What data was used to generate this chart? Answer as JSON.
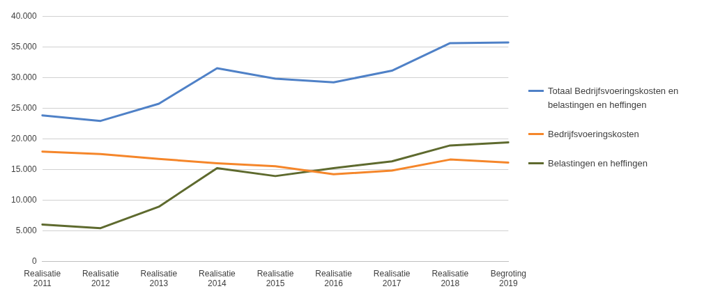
{
  "chart_data": {
    "type": "line",
    "categories": [
      "Realisatie 2011",
      "Realisatie 2012",
      "Realisatie 2013",
      "Realisatie 2014",
      "Realisatie 2015",
      "Realisatie 2016",
      "Realisatie 2017",
      "Realisatie 2018",
      "Begroting 2019"
    ],
    "series": [
      {
        "name": "Totaal Bedrijfsvoeringskosten en belastingen en heffingen",
        "color": "#4f81c7",
        "values": [
          23800,
          22900,
          25700,
          31500,
          29800,
          29200,
          31100,
          35600,
          35700
        ]
      },
      {
        "name": "Bedrijfsvoeringskosten",
        "color": "#f5862a",
        "values": [
          17900,
          17500,
          16700,
          16000,
          15500,
          14200,
          14800,
          16600,
          16100
        ]
      },
      {
        "name": "Belastingen en heffingen",
        "color": "#5e6a2e",
        "values": [
          6000,
          5400,
          8900,
          15200,
          13900,
          15200,
          16300,
          18900,
          19400
        ]
      }
    ],
    "ylim": [
      0,
      40000
    ],
    "yticks": [
      {
        "value": 0,
        "label": "0"
      },
      {
        "value": 5000,
        "label": "5.000"
      },
      {
        "value": 10000,
        "label": "10.000"
      },
      {
        "value": 15000,
        "label": "15.000"
      },
      {
        "value": 20000,
        "label": "20.000"
      },
      {
        "value": 25000,
        "label": "25.000"
      },
      {
        "value": 30000,
        "label": "30.000"
      },
      {
        "value": 35000,
        "label": "35.000"
      },
      {
        "value": 40000,
        "label": "40.000"
      }
    ],
    "grid": "y",
    "legend": "right",
    "marker": "none",
    "line_style": "solid"
  }
}
